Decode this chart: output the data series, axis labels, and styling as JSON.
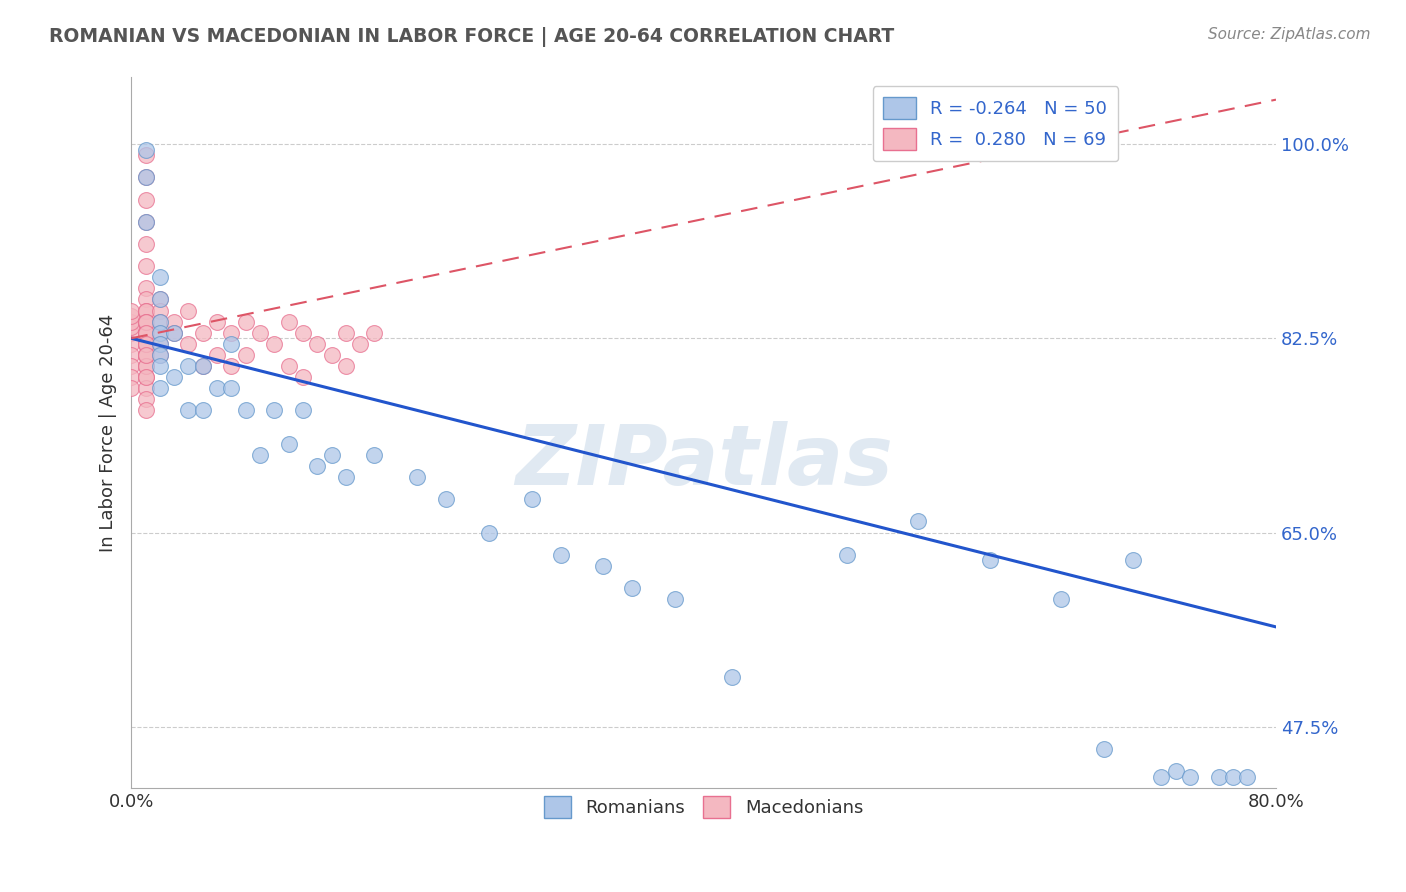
{
  "title": "ROMANIAN VS MACEDONIAN IN LABOR FORCE | AGE 20-64 CORRELATION CHART",
  "source_text": "Source: ZipAtlas.com",
  "ylabel": "In Labor Force | Age 20-64",
  "xlim": [
    0.0,
    0.8
  ],
  "ylim": [
    0.42,
    1.06
  ],
  "grid_color": "#cccccc",
  "background_color": "#ffffff",
  "romanian_color": "#aec6e8",
  "macedonian_color": "#f4b8c1",
  "romanian_edge": "#6699cc",
  "macedonian_edge": "#e87090",
  "trend_romanian_color": "#2255cc",
  "trend_macedonian_color": "#dd5566",
  "legend_R_romanian": "-0.264",
  "legend_N_romanian": "50",
  "legend_R_macedonian": "0.280",
  "legend_N_macedonian": "69",
  "watermark": "ZIPatlas",
  "watermark_color": "#c8d8e8",
  "rom_trend_x0": 0.0,
  "rom_trend_y0": 0.825,
  "rom_trend_x1": 0.8,
  "rom_trend_y1": 0.565,
  "mac_trend_x0": 0.0,
  "mac_trend_y0": 0.825,
  "mac_trend_x1": 0.8,
  "mac_trend_y1": 1.04,
  "romanian_x": [
    0.01,
    0.01,
    0.01,
    0.02,
    0.02,
    0.02,
    0.02,
    0.02,
    0.02,
    0.02,
    0.02,
    0.03,
    0.03,
    0.04,
    0.04,
    0.05,
    0.05,
    0.06,
    0.07,
    0.07,
    0.08,
    0.09,
    0.1,
    0.11,
    0.12,
    0.13,
    0.14,
    0.15,
    0.17,
    0.2,
    0.22,
    0.25,
    0.28,
    0.3,
    0.33,
    0.35,
    0.38,
    0.42,
    0.5,
    0.55,
    0.6,
    0.65,
    0.68,
    0.7,
    0.72,
    0.73,
    0.74,
    0.76,
    0.77,
    0.78
  ],
  "romanian_y": [
    0.995,
    0.97,
    0.93,
    0.88,
    0.86,
    0.84,
    0.83,
    0.82,
    0.81,
    0.8,
    0.78,
    0.83,
    0.79,
    0.8,
    0.76,
    0.8,
    0.76,
    0.78,
    0.82,
    0.78,
    0.76,
    0.72,
    0.76,
    0.73,
    0.76,
    0.71,
    0.72,
    0.7,
    0.72,
    0.7,
    0.68,
    0.65,
    0.68,
    0.63,
    0.62,
    0.6,
    0.59,
    0.52,
    0.63,
    0.66,
    0.625,
    0.59,
    0.455,
    0.625,
    0.43,
    0.435,
    0.43,
    0.43,
    0.43,
    0.43
  ],
  "macedonian_x": [
    0.0,
    0.0,
    0.0,
    0.0,
    0.0,
    0.0,
    0.0,
    0.0,
    0.0,
    0.0,
    0.01,
    0.01,
    0.01,
    0.01,
    0.01,
    0.01,
    0.01,
    0.01,
    0.01,
    0.01,
    0.01,
    0.01,
    0.01,
    0.01,
    0.01,
    0.01,
    0.01,
    0.01,
    0.01,
    0.01,
    0.01,
    0.01,
    0.01,
    0.01,
    0.01,
    0.01,
    0.01,
    0.01,
    0.01,
    0.02,
    0.02,
    0.02,
    0.02,
    0.02,
    0.02,
    0.03,
    0.03,
    0.04,
    0.04,
    0.05,
    0.05,
    0.06,
    0.06,
    0.07,
    0.07,
    0.08,
    0.08,
    0.09,
    0.1,
    0.11,
    0.11,
    0.12,
    0.12,
    0.13,
    0.14,
    0.15,
    0.15,
    0.16,
    0.17
  ],
  "macedonian_y": [
    0.83,
    0.835,
    0.84,
    0.845,
    0.85,
    0.82,
    0.81,
    0.8,
    0.79,
    0.78,
    0.99,
    0.97,
    0.95,
    0.93,
    0.91,
    0.89,
    0.87,
    0.86,
    0.85,
    0.84,
    0.83,
    0.82,
    0.81,
    0.8,
    0.79,
    0.78,
    0.77,
    0.76,
    0.85,
    0.84,
    0.83,
    0.82,
    0.81,
    0.8,
    0.79,
    0.84,
    0.83,
    0.82,
    0.81,
    0.86,
    0.85,
    0.84,
    0.83,
    0.82,
    0.81,
    0.84,
    0.83,
    0.85,
    0.82,
    0.83,
    0.8,
    0.84,
    0.81,
    0.83,
    0.8,
    0.84,
    0.81,
    0.83,
    0.82,
    0.84,
    0.8,
    0.83,
    0.79,
    0.82,
    0.81,
    0.83,
    0.8,
    0.82,
    0.83
  ]
}
